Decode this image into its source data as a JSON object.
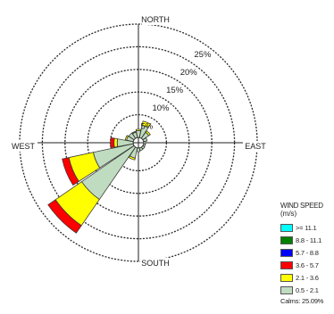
{
  "chart_data": {
    "type": "wind-rose",
    "directions": [
      "N",
      "NNE",
      "NE",
      "ENE",
      "E",
      "ESE",
      "SE",
      "SSE",
      "S",
      "SSW",
      "SW",
      "WSW",
      "W",
      "WNW",
      "NW",
      "NNW"
    ],
    "compass_labels": {
      "north": "NORTH",
      "east": "EAST",
      "south": "SOUTH",
      "west": "WEST"
    },
    "ring_labels": [
      "5%",
      "10%",
      "15%",
      "20%",
      "25%"
    ],
    "rings": [
      5,
      10,
      15,
      20,
      25
    ],
    "legend_title": "WIND SPEED",
    "legend_units": "(m/s)",
    "bins": [
      {
        "label": "0.5 - 2.1",
        "color": "#c0dcc0"
      },
      {
        "label": "2.1 - 3.6",
        "color": "#ffff00"
      },
      {
        "label": "3.6 - 5.7",
        "color": "#ff0000"
      },
      {
        "label": "5.7 - 8.8",
        "color": "#0000ff"
      },
      {
        "label": "8.8 - 11.1",
        "color": "#008000"
      },
      {
        "label": ">= 11.1",
        "color": "#00ffff"
      }
    ],
    "calms": "Calms: 25.09%",
    "frequencies": [
      [
        1.5,
        0.3,
        0,
        0,
        0,
        0
      ],
      [
        2.8,
        0.9,
        0,
        0,
        0,
        0
      ],
      [
        1.6,
        0.4,
        0,
        0,
        0,
        0
      ],
      [
        0.8,
        0,
        0,
        0,
        0,
        0
      ],
      [
        0.4,
        0,
        0,
        0,
        0,
        0
      ],
      [
        0.4,
        0,
        0,
        0,
        0,
        0
      ],
      [
        0.5,
        0,
        0,
        0,
        0,
        0
      ],
      [
        0.6,
        0,
        0,
        0,
        0,
        0
      ],
      [
        0.8,
        0,
        0,
        0,
        0,
        0
      ],
      [
        2.3,
        0.4,
        0,
        0,
        0,
        0
      ],
      [
        14.0,
        7.0,
        2.0,
        0,
        0,
        0
      ],
      [
        9.0,
        5.5,
        1.5,
        0,
        0,
        0
      ],
      [
        3.5,
        0.7,
        0.8,
        0,
        0,
        0
      ],
      [
        1.5,
        0.3,
        0,
        0,
        0,
        0
      ],
      [
        1.4,
        0,
        0,
        0,
        0,
        0
      ],
      [
        1.2,
        0.2,
        0,
        0,
        0,
        0
      ]
    ]
  }
}
